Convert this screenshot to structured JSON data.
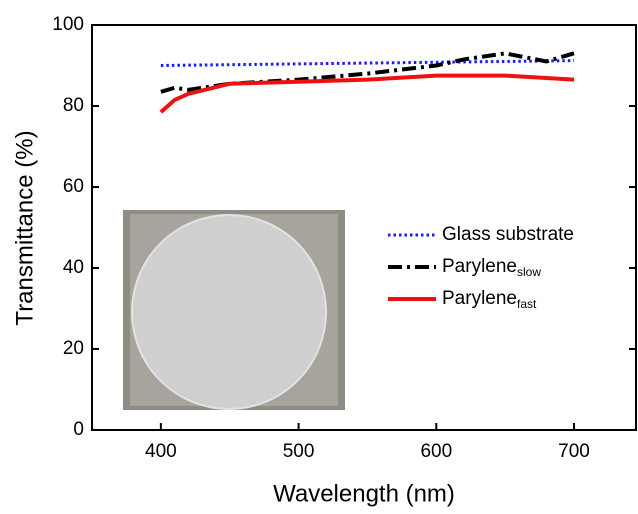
{
  "chart_data": {
    "type": "line",
    "xlabel": "Wavelength (nm)",
    "ylabel": "Transmittance (%)",
    "xlim": [
      350,
      745
    ],
    "ylim": [
      0,
      100
    ],
    "xticks": [
      400,
      500,
      600,
      700
    ],
    "yticks": [
      0,
      20,
      40,
      60,
      80,
      100
    ],
    "legend": "right",
    "series": [
      {
        "name": "Glass substrate",
        "color": "#1a1aff",
        "dash": "dotted",
        "x": [
          400,
          450,
          500,
          550,
          600,
          650,
          700
        ],
        "values": [
          90,
          90.2,
          90.4,
          90.6,
          90.8,
          91,
          91.2
        ]
      },
      {
        "name": "Parylene",
        "name_sub": "slow",
        "color": "#000000",
        "dash": "dashdot",
        "x": [
          400,
          410,
          420,
          450,
          500,
          550,
          600,
          620,
          650,
          680,
          700
        ],
        "values": [
          83.5,
          84.5,
          84,
          85.5,
          86.5,
          88,
          90,
          91.5,
          93,
          91,
          93
        ]
      },
      {
        "name": "Parylene",
        "name_sub": "fast",
        "color": "#ee1111",
        "dash": "solid",
        "x": [
          400,
          410,
          420,
          450,
          500,
          550,
          600,
          650,
          700
        ],
        "values": [
          78.5,
          81.5,
          83,
          85.5,
          86,
          86.5,
          87.5,
          87.5,
          86.5
        ]
      }
    ]
  }
}
